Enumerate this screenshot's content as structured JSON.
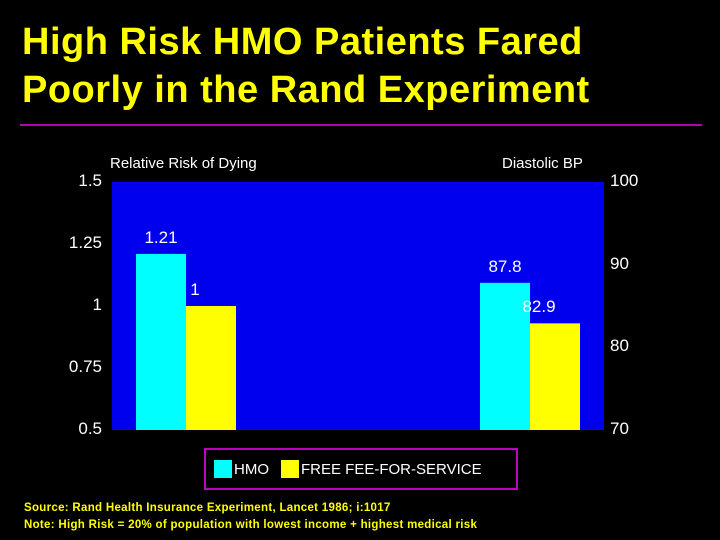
{
  "title": {
    "line1": "High Risk HMO Patients Fared",
    "line2": "Poorly in the Rand Experiment"
  },
  "colors": {
    "background": "#000000",
    "title": "#ffff00",
    "plot_bg": "#0000ee",
    "hmo": "#00ffff",
    "ffs": "#ffff00",
    "rule": "#b000b0",
    "legend_border": "#c000c0"
  },
  "chart_data": {
    "type": "bar",
    "left_axis": {
      "title": "Relative Risk of Dying",
      "ticks": [
        "1.5",
        "1.25",
        "1",
        "0.75",
        "0.5"
      ],
      "ylim": [
        0.5,
        1.5
      ]
    },
    "right_axis": {
      "title": "Diastolic BP",
      "ticks": [
        "100",
        "90",
        "80",
        "70"
      ],
      "ylim": [
        70,
        100
      ]
    },
    "groups": [
      {
        "axis": "left",
        "bars": [
          {
            "series": "HMO",
            "value": 1.21,
            "label": "1.21"
          },
          {
            "series": "FREE FEE-FOR-SERVICE",
            "value": 1,
            "label": "1"
          }
        ]
      },
      {
        "axis": "right",
        "bars": [
          {
            "series": "HMO",
            "value": 87.8,
            "label": "87.8"
          },
          {
            "series": "FREE FEE-FOR-SERVICE",
            "value": 82.9,
            "label": "82.9"
          }
        ]
      }
    ],
    "legend": {
      "position": "bottom-center",
      "items": [
        "HMO",
        "FREE FEE-FOR-SERVICE"
      ]
    },
    "grid": false
  },
  "footnotes": {
    "source": "Source: Rand Health Insurance Experiment, Lancet 1986; i:1017",
    "note": "Note: High Risk = 20% of population with lowest income + highest medical risk"
  }
}
